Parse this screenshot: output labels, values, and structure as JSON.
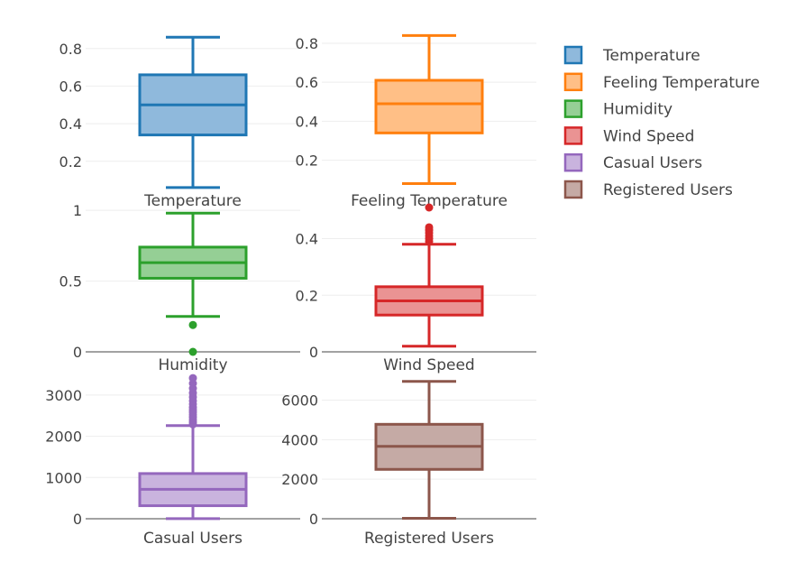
{
  "chart_data": {
    "type": "box",
    "legend": {
      "placement": "top-right",
      "entries": [
        "Temperature",
        "Feeling Temperature",
        "Humidity",
        "Wind Speed",
        "Casual Users",
        "Registered Users"
      ]
    },
    "grid": true,
    "panels": [
      {
        "name": "Temperature",
        "color": "#1f77b4",
        "fill": "#8fb9dc",
        "ylim": [
          0.05,
          0.89
        ],
        "yticks": [
          0.2,
          0.4,
          0.6,
          0.8
        ],
        "yticklabels": [
          "0.2",
          "0.4",
          "0.6",
          "0.8"
        ],
        "box": {
          "lowerfence": 0.06,
          "q1": 0.34,
          "median": 0.5,
          "q3": 0.66,
          "upperfence": 0.86
        },
        "outliers": []
      },
      {
        "name": "Feeling Temperature",
        "color": "#ff7f0e",
        "fill": "#ffbf86",
        "ylim": [
          0.05,
          0.86
        ],
        "yticks": [
          0.2,
          0.4,
          0.6,
          0.8
        ],
        "yticklabels": [
          "0.2",
          "0.4",
          "0.6",
          "0.8"
        ],
        "box": {
          "lowerfence": 0.08,
          "q1": 0.34,
          "median": 0.49,
          "q3": 0.61,
          "upperfence": 0.84
        },
        "outliers": []
      },
      {
        "name": "Humidity",
        "color": "#2ca02c",
        "fill": "#95cf95",
        "ylim": [
          0,
          1.02
        ],
        "yticks": [
          0,
          0.5,
          1
        ],
        "yticklabels": [
          "0",
          "0.5",
          "1"
        ],
        "zeroline": true,
        "box": {
          "lowerfence": 0.25,
          "q1": 0.52,
          "median": 0.63,
          "q3": 0.74,
          "upperfence": 0.98
        },
        "outliers": [
          0.19,
          0
        ]
      },
      {
        "name": "Wind Speed",
        "color": "#d62728",
        "fill": "#ea9393",
        "ylim": [
          0,
          0.51
        ],
        "yticks": [
          0,
          0.2,
          0.4
        ],
        "yticklabels": [
          "0",
          "0.2",
          "0.4"
        ],
        "zeroline": true,
        "box": {
          "lowerfence": 0.02,
          "q1": 0.13,
          "median": 0.18,
          "q3": 0.23,
          "upperfence": 0.38
        },
        "outliers": [
          0.39,
          0.4,
          0.41,
          0.42,
          0.43,
          0.44,
          0.51
        ]
      },
      {
        "name": "Casual Users",
        "color": "#9467bd",
        "fill": "#c9b3de",
        "ylim": [
          0,
          3500
        ],
        "yticks": [
          0,
          1000,
          2000,
          3000
        ],
        "yticklabels": [
          "0",
          "1000",
          "2000",
          "3000"
        ],
        "zeroline": true,
        "box": {
          "lowerfence": 2,
          "q1": 316,
          "median": 713,
          "q3": 1096,
          "upperfence": 2258
        },
        "outliers": [
          2290,
          2340,
          2400,
          2460,
          2520,
          2580,
          2640,
          2700,
          2780,
          2860,
          2950,
          3050,
          3160,
          3280,
          3410
        ]
      },
      {
        "name": "Registered Users",
        "color": "#8c564b",
        "fill": "#c5aaa5",
        "ylim": [
          0,
          7300
        ],
        "yticks": [
          0,
          2000,
          4000,
          6000
        ],
        "yticklabels": [
          "0",
          "2000",
          "4000",
          "6000"
        ],
        "zeroline": true,
        "box": {
          "lowerfence": 20,
          "q1": 2497,
          "median": 3662,
          "q3": 4776,
          "upperfence": 6946
        },
        "outliers": []
      }
    ]
  }
}
